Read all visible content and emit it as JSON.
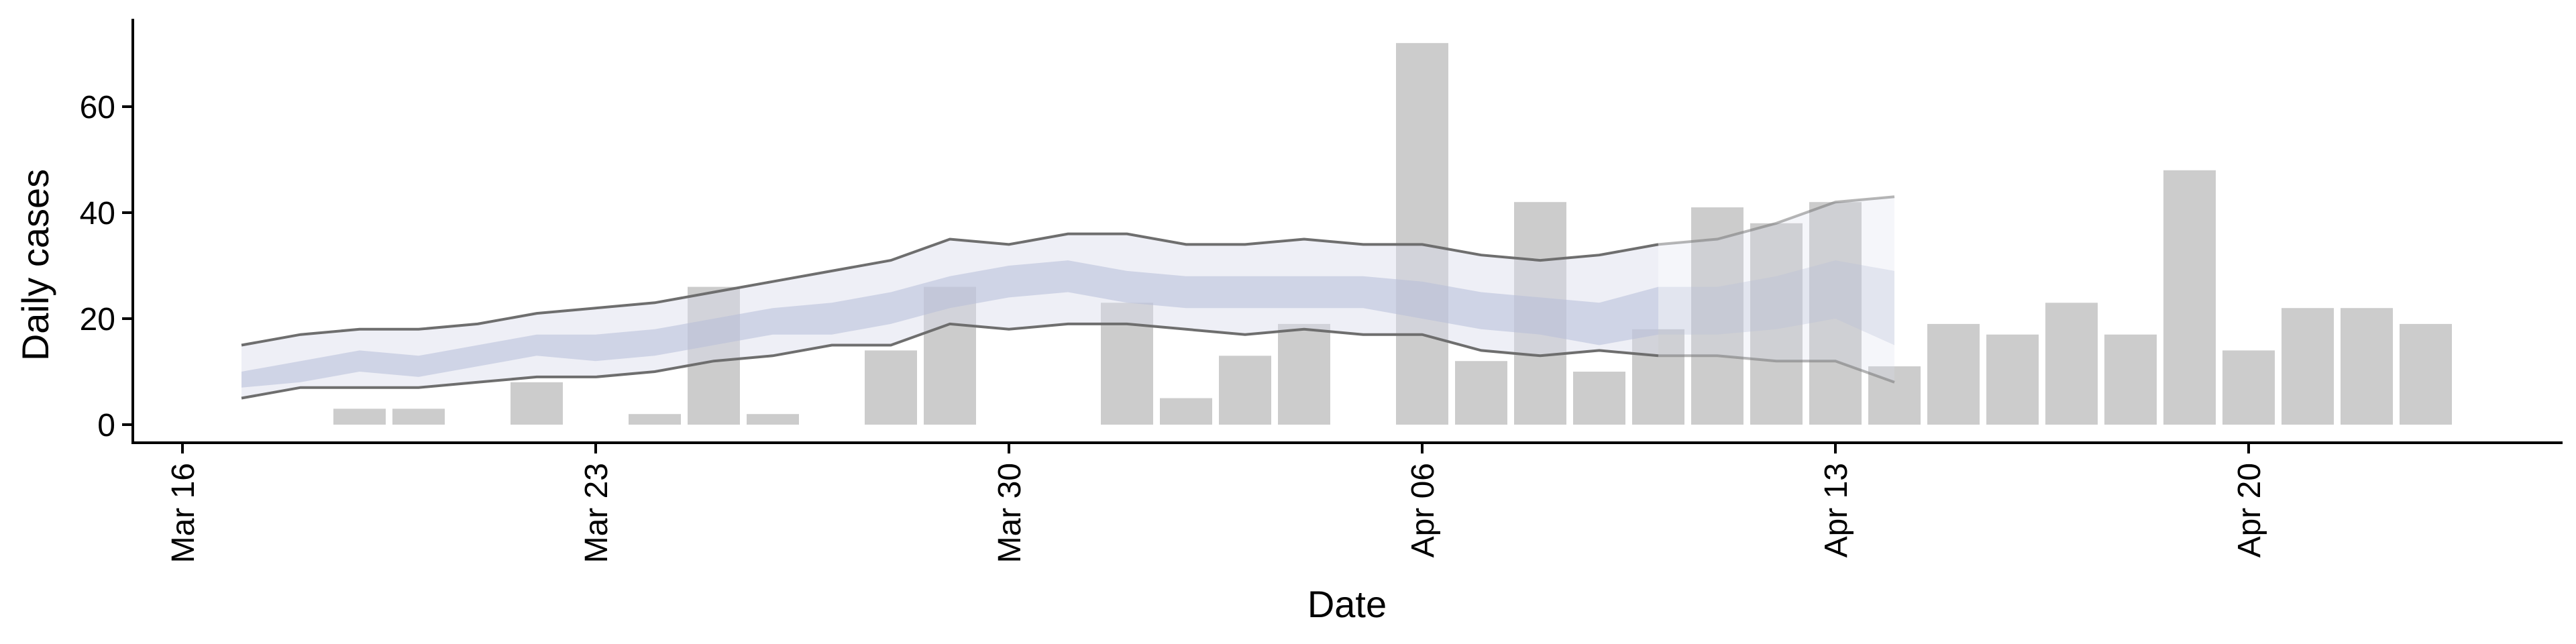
{
  "chart_data": {
    "type": "bar",
    "xlabel": "Date",
    "ylabel": "Daily cases",
    "ylim": [
      -4,
      76
    ],
    "yticks": [
      0,
      20,
      40,
      60
    ],
    "x_start": "Mar 16",
    "x_ticks": [
      {
        "day": 0,
        "label": "Mar 16"
      },
      {
        "day": 7,
        "label": "Mar 23"
      },
      {
        "day": 14,
        "label": "Mar 30"
      },
      {
        "day": 21,
        "label": "Apr 06"
      },
      {
        "day": 28,
        "label": "Apr 13"
      },
      {
        "day": 35,
        "label": "Apr 20"
      }
    ],
    "bars": {
      "name": "Reported cases",
      "dates": [
        "Mar 19",
        "Mar 20",
        "Mar 22",
        "Mar 24",
        "Mar 25",
        "Mar 26",
        "Mar 28",
        "Mar 29",
        "Apr 01",
        "Apr 02",
        "Apr 03",
        "Apr 04",
        "Apr 06",
        "Apr 07",
        "Apr 08",
        "Apr 09",
        "Apr 10",
        "Apr 11",
        "Apr 12",
        "Apr 13",
        "Apr 14",
        "Apr 15",
        "Apr 16",
        "Apr 17",
        "Apr 18",
        "Apr 19",
        "Apr 20",
        "Apr 21",
        "Apr 22",
        "Apr 23"
      ],
      "values": [
        3,
        3,
        8,
        2,
        26,
        2,
        14,
        26,
        23,
        5,
        13,
        19,
        72,
        12,
        42,
        10,
        18,
        41,
        38,
        42,
        11,
        19,
        17,
        23,
        17,
        48,
        14,
        22,
        22,
        19
      ],
      "color": "#cccccc"
    },
    "estimate": {
      "dates": [
        "Mar 17",
        "Mar 18",
        "Mar 19",
        "Mar 20",
        "Mar 21",
        "Mar 22",
        "Mar 23",
        "Mar 24",
        "Mar 25",
        "Mar 26",
        "Mar 27",
        "Mar 28",
        "Mar 29",
        "Mar 30",
        "Mar 31",
        "Apr 01",
        "Apr 02",
        "Apr 03",
        "Apr 04",
        "Apr 05",
        "Apr 06",
        "Apr 07",
        "Apr 08",
        "Apr 09",
        "Apr 10",
        "Apr 11",
        "Apr 12",
        "Apr 13",
        "Apr 14"
      ],
      "outer_upper": [
        15,
        17,
        18,
        18,
        19,
        21,
        22,
        23,
        25,
        27,
        29,
        31,
        35,
        34,
        36,
        36,
        34,
        34,
        35,
        34,
        34,
        32,
        31,
        32,
        34,
        35,
        38,
        42,
        43
      ],
      "outer_lower": [
        5,
        7,
        7,
        7,
        8,
        9,
        9,
        10,
        12,
        13,
        15,
        15,
        19,
        18,
        19,
        19,
        18,
        17,
        18,
        17,
        17,
        14,
        13,
        14,
        13,
        13,
        12,
        12,
        8
      ],
      "inner_upper": [
        10,
        12,
        14,
        13,
        15,
        17,
        17,
        18,
        20,
        22,
        23,
        25,
        28,
        30,
        31,
        29,
        28,
        28,
        28,
        28,
        27,
        25,
        24,
        23,
        26,
        26,
        28,
        31,
        29
      ],
      "inner_lower": [
        7,
        8,
        10,
        9,
        11,
        13,
        12,
        13,
        15,
        17,
        17,
        19,
        22,
        24,
        25,
        23,
        22,
        22,
        22,
        22,
        20,
        18,
        17,
        15,
        17,
        17,
        18,
        20,
        15
      ],
      "nowcast_from": "Apr 10",
      "outer_fill": "#d9dcec",
      "inner_fill": "#b6bdd8",
      "line_color": "#6e6e6e"
    }
  }
}
